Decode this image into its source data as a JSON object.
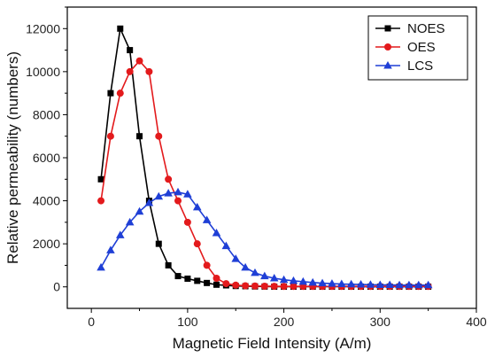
{
  "chart_data": {
    "type": "line",
    "xlabel": "Magnetic Field Intensity (A/m)",
    "ylabel": "Relative permeability (numbers)",
    "xlim": [
      -25,
      400
    ],
    "ylim": [
      -1000,
      13000
    ],
    "xticks": [
      "0",
      "100",
      "200",
      "300",
      "400"
    ],
    "xtick_values": [
      0,
      100,
      200,
      300,
      400
    ],
    "yticks": [
      "0",
      "2000",
      "4000",
      "6000",
      "8000",
      "10000",
      "12000"
    ],
    "ytick_values": [
      0,
      2000,
      4000,
      6000,
      8000,
      10000,
      12000
    ],
    "grid": false,
    "legend_position": "top-right",
    "series": [
      {
        "name": "NOES",
        "color": "#000000",
        "marker": "square",
        "x": [
          10,
          20,
          30,
          40,
          50,
          60,
          70,
          80,
          90,
          100,
          110,
          120,
          130,
          140,
          150,
          160,
          170,
          180,
          190,
          200,
          210,
          220,
          230,
          240,
          250,
          260,
          270,
          280,
          290,
          300,
          310,
          320,
          330,
          340,
          350
        ],
        "y": [
          5000,
          9000,
          12000,
          11000,
          7000,
          4000,
          2000,
          1000,
          500,
          380,
          280,
          180,
          100,
          70,
          40,
          30,
          20,
          15,
          10,
          10,
          10,
          10,
          10,
          10,
          10,
          10,
          10,
          10,
          10,
          10,
          10,
          10,
          10,
          10,
          10
        ]
      },
      {
        "name": "OES",
        "color": "#e31a1c",
        "marker": "circle",
        "x": [
          10,
          20,
          30,
          40,
          50,
          60,
          70,
          80,
          90,
          100,
          110,
          120,
          130,
          140,
          150,
          160,
          170,
          180,
          190,
          200,
          210,
          220,
          230,
          240,
          250,
          260,
          270,
          280,
          290,
          300,
          310,
          320,
          330,
          340,
          350
        ],
        "y": [
          4000,
          7000,
          9000,
          10000,
          10500,
          10000,
          7000,
          5000,
          4000,
          3000,
          2000,
          1000,
          400,
          150,
          80,
          50,
          40,
          30,
          25,
          20,
          20,
          20,
          20,
          20,
          20,
          20,
          20,
          20,
          20,
          20,
          20,
          20,
          20,
          20,
          20
        ]
      },
      {
        "name": "LCS",
        "color": "#1f3fd6",
        "marker": "triangle",
        "x": [
          10,
          20,
          30,
          40,
          50,
          60,
          70,
          80,
          90,
          100,
          110,
          120,
          130,
          140,
          150,
          160,
          170,
          180,
          190,
          200,
          210,
          220,
          230,
          240,
          250,
          260,
          270,
          280,
          290,
          300,
          310,
          320,
          330,
          340,
          350
        ],
        "y": [
          900,
          1700,
          2400,
          3000,
          3500,
          3900,
          4200,
          4350,
          4400,
          4300,
          3700,
          3100,
          2500,
          1900,
          1300,
          900,
          650,
          500,
          400,
          330,
          280,
          240,
          200,
          170,
          150,
          130,
          120,
          110,
          100,
          90,
          90,
          80,
          80,
          80,
          80
        ]
      }
    ]
  }
}
